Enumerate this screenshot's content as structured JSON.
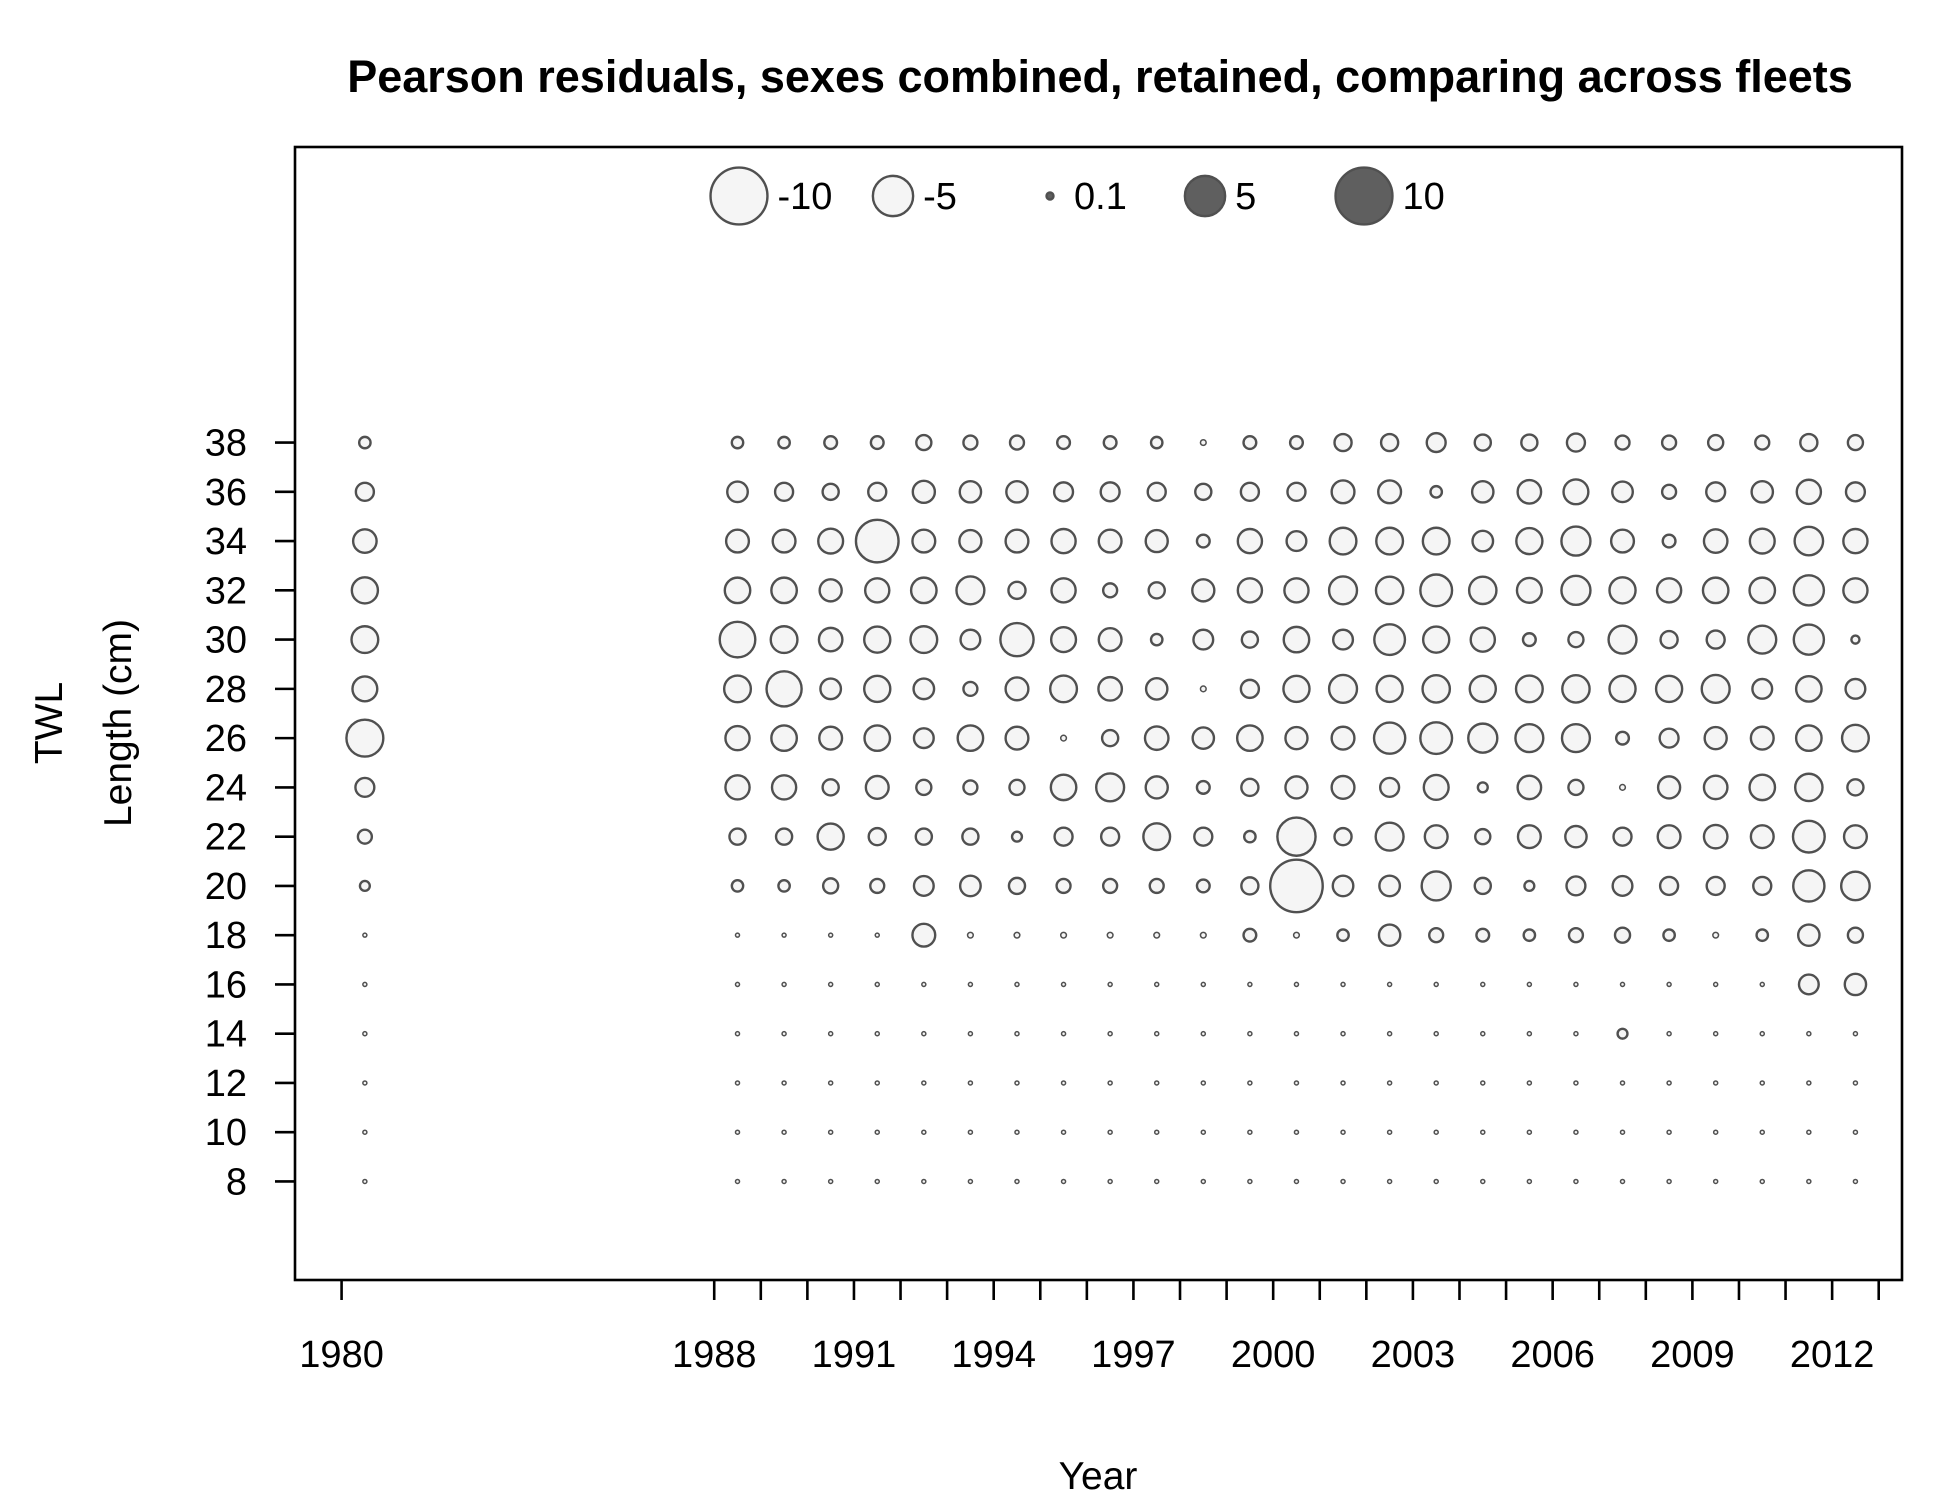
{
  "chart_data": {
    "type": "bubble",
    "title": "Pearson residuals, sexes combined, retained, comparing across fleets",
    "xlabel": "Year",
    "ylabel": "Length (cm)",
    "fleet_label": "TWL",
    "xlim": [
      1979.0,
      2013.5
    ],
    "ylim": [
      4.0,
      50.0
    ],
    "x_ticks": [
      1980,
      1988,
      1989,
      1990,
      1991,
      1992,
      1993,
      1994,
      1995,
      1996,
      1997,
      1998,
      1999,
      2000,
      2001,
      2002,
      2003,
      2004,
      2005,
      2006,
      2007,
      2008,
      2009,
      2010,
      2011,
      2012,
      2013
    ],
    "x_tick_labels": [
      1980,
      1988,
      1991,
      1994,
      1997,
      2000,
      2003,
      2006,
      2009,
      2012
    ],
    "y_ticks": [
      8,
      10,
      12,
      14,
      16,
      18,
      20,
      22,
      24,
      26,
      28,
      30,
      32,
      34,
      36,
      38
    ],
    "colors": {
      "negative_fill": "#f5f5f5",
      "positive_fill": "#5f5f5f",
      "stroke": "#505050"
    },
    "legend": {
      "placement": "top-center",
      "entries": [
        {
          "label": "-10",
          "value": -10
        },
        {
          "label": "-5",
          "value": -5
        },
        {
          "label": "0.1",
          "value": 0.1
        },
        {
          "label": "5",
          "value": 5
        },
        {
          "label": "10",
          "value": 10
        }
      ]
    },
    "lengths": [
      8,
      10,
      12,
      14,
      16,
      18,
      20,
      22,
      24,
      26,
      28,
      30,
      32,
      34,
      36,
      38
    ],
    "series": [
      {
        "year": 1980.5,
        "residuals": [
          -0.05,
          -0.05,
          -0.05,
          -0.05,
          -0.05,
          -0.05,
          -0.3,
          -0.6,
          -1.1,
          -4.2,
          -1.9,
          -2.2,
          -2.1,
          -1.7,
          -1.0,
          -0.4
        ]
      },
      {
        "year": 1988.5,
        "residuals": [
          -0.05,
          -0.05,
          -0.05,
          -0.05,
          -0.05,
          -0.05,
          -0.4,
          -0.8,
          -1.8,
          -1.8,
          -2.2,
          -3.9,
          -2.0,
          -1.6,
          -1.3,
          -0.4
        ]
      },
      {
        "year": 1989.5,
        "residuals": [
          -0.05,
          -0.05,
          -0.05,
          -0.05,
          -0.05,
          -0.05,
          -0.4,
          -0.8,
          -1.8,
          -2.0,
          -3.8,
          -2.2,
          -2.0,
          -1.6,
          -1.0,
          -0.4
        ]
      },
      {
        "year": 1990.5,
        "residuals": [
          -0.05,
          -0.05,
          -0.05,
          -0.05,
          -0.05,
          -0.05,
          -0.7,
          -2.1,
          -0.8,
          -1.6,
          -1.3,
          -1.7,
          -1.5,
          -1.9,
          -0.8,
          -0.5
        ]
      },
      {
        "year": 1991.5,
        "residuals": [
          -0.05,
          -0.05,
          -0.05,
          -0.05,
          -0.05,
          -0.05,
          -0.6,
          -0.9,
          -1.6,
          -2.0,
          -2.1,
          -2.1,
          -1.8,
          -5.6,
          -1.0,
          -0.5
        ]
      },
      {
        "year": 1992.5,
        "residuals": [
          -0.05,
          -0.05,
          -0.05,
          -0.05,
          -0.05,
          -1.6,
          -1.2,
          -0.8,
          -0.7,
          -1.2,
          -1.3,
          -2.2,
          -2.0,
          -1.6,
          -1.5,
          -0.7
        ]
      },
      {
        "year": 1993.5,
        "residuals": [
          -0.05,
          -0.05,
          -0.05,
          -0.05,
          -0.05,
          -0.1,
          -1.3,
          -0.8,
          -0.6,
          -2.0,
          -0.6,
          -1.2,
          -2.4,
          -1.5,
          -1.4,
          -0.6
        ]
      },
      {
        "year": 1994.5,
        "residuals": [
          -0.05,
          -0.05,
          -0.05,
          -0.05,
          -0.05,
          -0.1,
          -0.8,
          -0.3,
          -0.7,
          -1.6,
          -1.6,
          -3.4,
          -0.9,
          -1.6,
          -1.4,
          -0.6
        ]
      },
      {
        "year": 1995.5,
        "residuals": [
          -0.05,
          -0.05,
          -0.05,
          -0.05,
          -0.05,
          -0.1,
          -0.6,
          -1.0,
          -2.0,
          -0.1,
          -2.2,
          -1.9,
          -1.8,
          -1.8,
          -1.1,
          -0.5
        ]
      },
      {
        "year": 1996.5,
        "residuals": [
          -0.05,
          -0.05,
          -0.05,
          -0.05,
          -0.05,
          -0.1,
          -0.6,
          -1.0,
          -2.4,
          -0.8,
          -1.7,
          -1.6,
          -0.6,
          -1.6,
          -1.1,
          -0.5
        ]
      },
      {
        "year": 1997.5,
        "residuals": [
          -0.05,
          -0.05,
          -0.05,
          -0.05,
          -0.05,
          -0.1,
          -0.6,
          -2.2,
          -1.5,
          -1.7,
          -1.4,
          -0.4,
          -0.8,
          -1.5,
          -1.0,
          -0.4
        ]
      },
      {
        "year": 1998.5,
        "residuals": [
          -0.05,
          -0.05,
          -0.05,
          -0.05,
          -0.05,
          -0.1,
          -0.5,
          -1.0,
          -0.5,
          -1.4,
          -0.1,
          -1.2,
          -1.5,
          -0.5,
          -0.8,
          -0.1
        ]
      },
      {
        "year": 1999.5,
        "residuals": [
          -0.05,
          -0.05,
          -0.05,
          -0.05,
          -0.05,
          -0.5,
          -0.9,
          -0.4,
          -0.9,
          -2.0,
          -1.0,
          -0.8,
          -1.8,
          -1.8,
          -1.0,
          -0.5
        ]
      },
      {
        "year": 2000.5,
        "residuals": [
          -0.05,
          -0.05,
          -0.05,
          -0.05,
          -0.05,
          -0.1,
          -8.5,
          -4.5,
          -1.5,
          -1.5,
          -2.1,
          -2.0,
          -1.8,
          -1.2,
          -1.0,
          -0.5
        ]
      },
      {
        "year": 2001.5,
        "residuals": [
          -0.05,
          -0.05,
          -0.05,
          -0.05,
          -0.05,
          -0.4,
          -1.3,
          -0.9,
          -1.6,
          -1.6,
          -2.4,
          -1.2,
          -2.4,
          -2.2,
          -1.6,
          -0.9
        ]
      },
      {
        "year": 2002.5,
        "residuals": [
          -0.05,
          -0.05,
          -0.05,
          -0.05,
          -0.05,
          -1.4,
          -1.3,
          -2.4,
          -1.1,
          -3.0,
          -2.1,
          -2.9,
          -2.3,
          -2.2,
          -1.6,
          -0.9
        ]
      },
      {
        "year": 2003.5,
        "residuals": [
          -0.05,
          -0.05,
          -0.05,
          -0.05,
          -0.05,
          -0.6,
          -2.6,
          -1.6,
          -1.9,
          -3.1,
          -2.3,
          -2.1,
          -3.1,
          -2.2,
          -0.4,
          -1.1
        ]
      },
      {
        "year": 2004.5,
        "residuals": [
          -0.05,
          -0.05,
          -0.05,
          -0.05,
          -0.05,
          -0.5,
          -0.8,
          -0.7,
          -0.3,
          -2.6,
          -2.1,
          -1.8,
          -2.3,
          -1.3,
          -1.4,
          -0.8
        ]
      },
      {
        "year": 2005.5,
        "residuals": [
          -0.05,
          -0.05,
          -0.05,
          -0.05,
          -0.05,
          -0.4,
          -0.3,
          -1.6,
          -1.7,
          -2.4,
          -2.2,
          -0.5,
          -1.9,
          -2.1,
          -1.7,
          -0.8
        ]
      },
      {
        "year": 2006.5,
        "residuals": [
          -0.05,
          -0.05,
          -0.05,
          -0.05,
          -0.05,
          -0.6,
          -1.1,
          -1.4,
          -0.7,
          -2.4,
          -2.3,
          -0.7,
          -2.6,
          -2.6,
          -1.9,
          -1.0
        ]
      },
      {
        "year": 2007.5,
        "residuals": [
          -0.05,
          -0.05,
          -0.05,
          -0.3,
          -0.05,
          -0.7,
          -1.2,
          -1.0,
          -0.1,
          -0.5,
          -2.1,
          -2.4,
          -2.1,
          -1.6,
          -1.3,
          -0.6
        ]
      },
      {
        "year": 2008.5,
        "residuals": [
          -0.05,
          -0.05,
          -0.05,
          -0.05,
          -0.05,
          -0.4,
          -1.0,
          -1.6,
          -1.5,
          -1.1,
          -2.1,
          -0.9,
          -1.8,
          -0.5,
          -0.6,
          -0.6
        ]
      },
      {
        "year": 2009.5,
        "residuals": [
          -0.05,
          -0.05,
          -0.05,
          -0.05,
          -0.05,
          -0.1,
          -1.0,
          -1.7,
          -1.7,
          -1.5,
          -2.4,
          -1.0,
          -2.0,
          -1.7,
          -1.1,
          -0.7
        ]
      },
      {
        "year": 2010.5,
        "residuals": [
          -0.05,
          -0.05,
          -0.05,
          -0.05,
          -0.05,
          -0.4,
          -1.0,
          -1.6,
          -2.0,
          -1.6,
          -1.2,
          -2.4,
          -2.0,
          -1.9,
          -1.4,
          -0.6
        ]
      },
      {
        "year": 2011.5,
        "residuals": [
          -0.05,
          -0.05,
          -0.05,
          -0.05,
          -1.2,
          -1.4,
          -3.0,
          -3.1,
          -2.3,
          -2.0,
          -2.0,
          -2.8,
          -2.8,
          -2.5,
          -1.8,
          -0.9
        ]
      },
      {
        "year": 2012.5,
        "residuals": [
          -0.05,
          -0.05,
          -0.05,
          -0.05,
          -1.4,
          -0.7,
          -2.5,
          -1.6,
          -0.8,
          -2.2,
          -1.2,
          -0.2,
          -1.8,
          -1.8,
          -1.1,
          -0.7
        ]
      }
    ]
  }
}
